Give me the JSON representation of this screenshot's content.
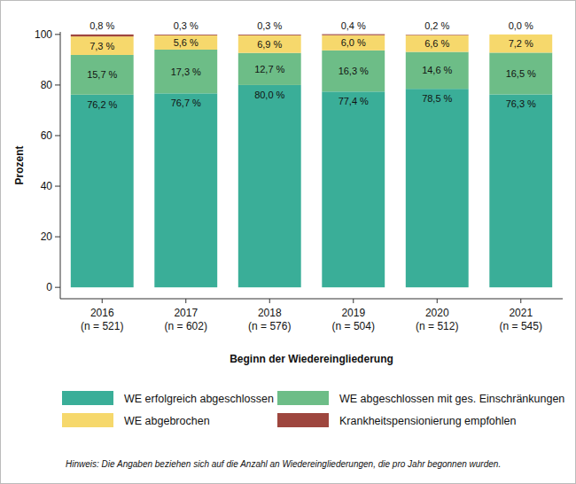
{
  "chart_data": {
    "type": "bar",
    "stacked": true,
    "data_labels": true,
    "grid": false,
    "legend": "bottom",
    "y_label": "Prozent",
    "x_label": "Beginn der Wiedereingliederung",
    "note": "Hinweis: Die Angaben beziehen sich auf die Anzahl an Wiedereingliederungen, die pro Jahr begonnen wurden.",
    "categories": [
      "2016\n(n = 521)",
      "2017\n(n = 602)",
      "2018\n(n = 576)",
      "2019\n(n = 504)",
      "2020\n(n = 512)",
      "2021\n(n = 545)"
    ],
    "ylim": [
      -4.5,
      101
    ],
    "yticks": [
      0,
      20,
      40,
      60,
      80,
      100
    ],
    "series": [
      {
        "name": "WE erfolgreich abgeschlossen",
        "color": "#3aae98",
        "values": [
          76.2,
          76.7,
          80.0,
          77.4,
          78.5,
          76.3
        ],
        "value_labels": [
          "76,2 %",
          "76,7 %",
          "80,0 %",
          "77,4 %",
          "78,5 %",
          "76,3 %"
        ]
      },
      {
        "name": "WE abgeschlossen mit ges. Einschränkungen",
        "color": "#6dbd87",
        "values": [
          15.7,
          17.3,
          12.7,
          16.3,
          14.6,
          16.5
        ],
        "value_labels": [
          "15,7 %",
          "17,3 %",
          "12,7 %",
          "16,3 %",
          "14,6 %",
          "16,5 %"
        ]
      },
      {
        "name": "WE abgebrochen",
        "color": "#f6d86c",
        "values": [
          7.3,
          5.6,
          6.9,
          6.0,
          6.6,
          7.2
        ],
        "value_labels": [
          "7,3 %",
          "5,6 %",
          "6,9 %",
          "6,0 %",
          "6,6 %",
          "7,2 %"
        ]
      },
      {
        "name": "Krankheitspensionierung empfohlen",
        "color": "#9e463e",
        "values": [
          0.8,
          0.3,
          0.3,
          0.4,
          0.2,
          0.0
        ],
        "value_labels": [
          "0,8 %",
          "0,3 %",
          "0,3 %",
          "0,4 %",
          "0,2 %",
          "0,0 %"
        ]
      }
    ]
  }
}
